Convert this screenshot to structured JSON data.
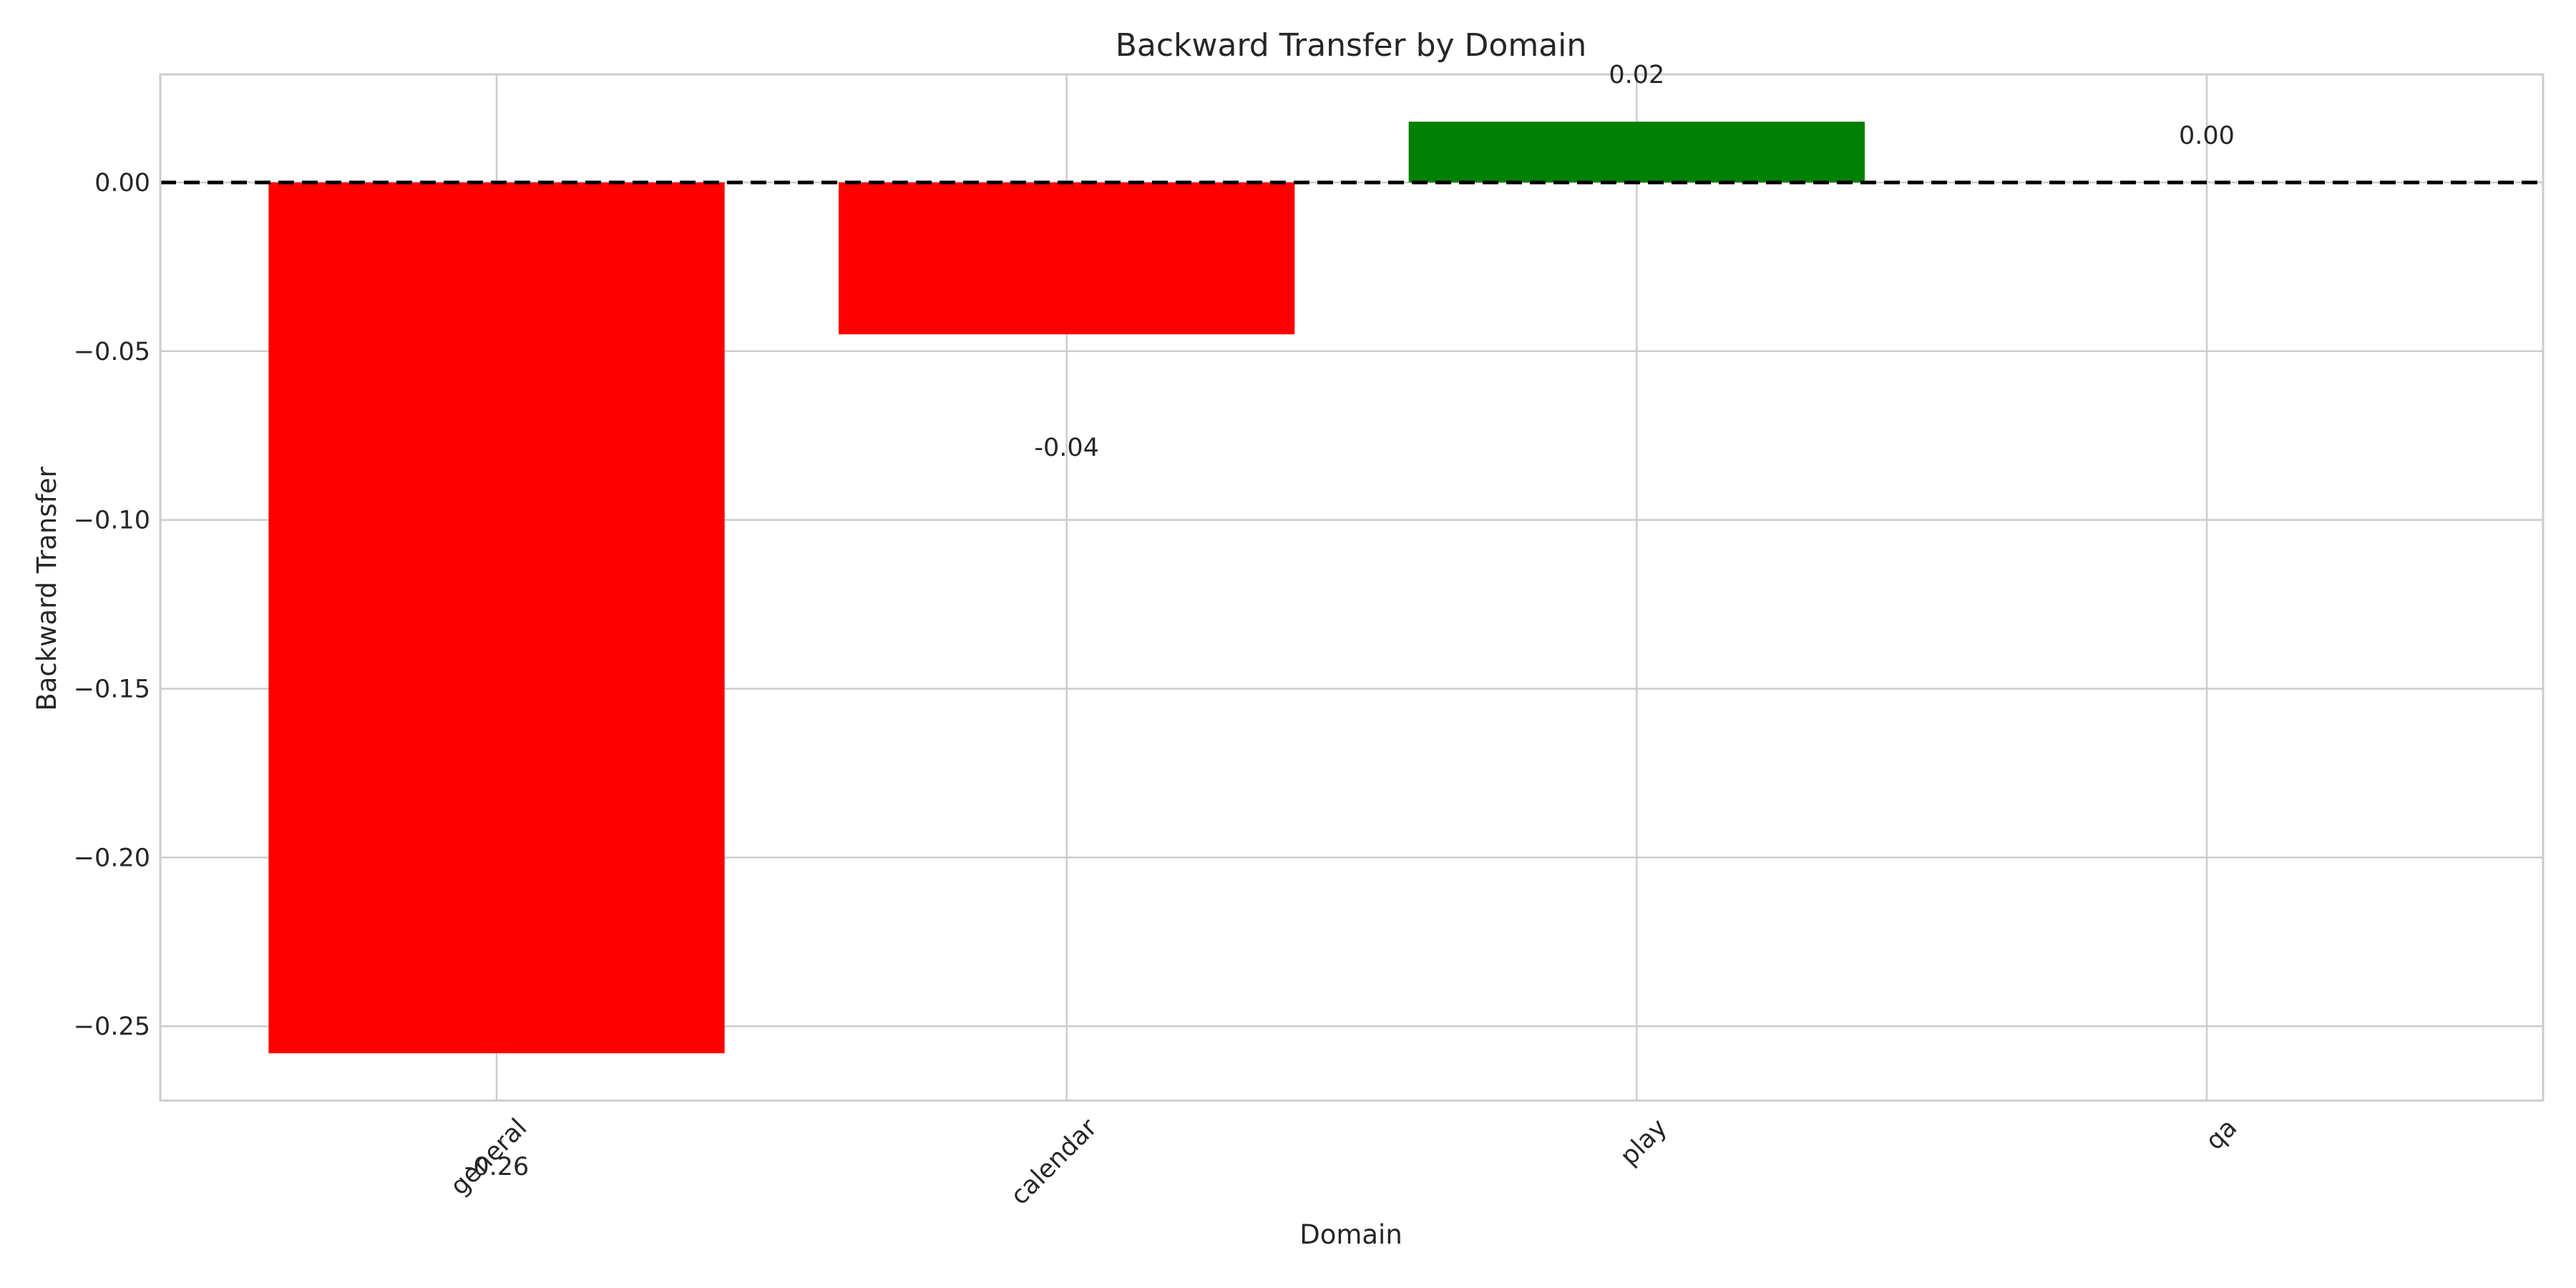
{
  "chart_data": {
    "type": "bar",
    "title": "Backward Transfer by Domain",
    "xlabel": "Domain",
    "ylabel": "Backward Transfer",
    "categories": [
      "general",
      "calendar",
      "play",
      "qa"
    ],
    "values": [
      -0.258,
      -0.045,
      0.018,
      0.0
    ],
    "value_labels": [
      "-0.26",
      "-0.04",
      "0.02",
      "0.00"
    ],
    "bar_colors": [
      "#ff0000",
      "#ff0000",
      "#008000",
      "#008000"
    ],
    "ylim": [
      -0.272,
      0.032
    ],
    "yticks": [
      0.0,
      -0.05,
      -0.1,
      -0.15,
      -0.2,
      -0.25
    ],
    "ytick_labels": [
      "0.00",
      "−0.05",
      "−0.10",
      "−0.15",
      "−0.20",
      "−0.25"
    ],
    "reference_line": {
      "y": 0.0,
      "style": "dashed",
      "color": "#000000"
    },
    "grid": true,
    "legend": false
  }
}
